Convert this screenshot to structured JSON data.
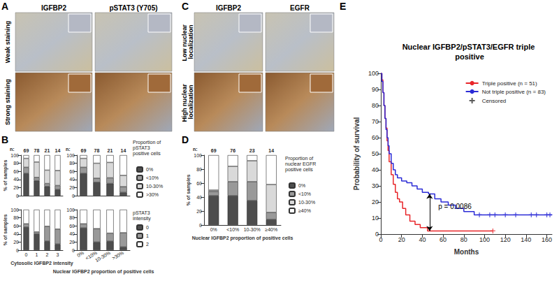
{
  "figure_panels": {
    "A": {
      "label": "A",
      "columns": [
        "IGFBP2",
        "pSTAT3 (Y705)"
      ],
      "rows": [
        "Weak staining",
        "Strong staining"
      ]
    },
    "C": {
      "label": "C",
      "columns": [
        "IGFBP2",
        "EGFR"
      ],
      "rows": [
        "Low nuclear localization",
        "High nuclear localization"
      ]
    }
  },
  "chart_data": [
    {
      "panel": "B",
      "type": "bar",
      "stacked": true,
      "grid": false,
      "tick_labels": "y",
      "categories": [
        "0",
        "1",
        "2",
        "3"
      ],
      "n_label": "n:",
      "n": [
        69,
        78,
        21,
        14
      ],
      "y_label": "% of samples",
      "ylim": [
        0,
        100
      ],
      "yticks": [
        0,
        20,
        40,
        60,
        80,
        100
      ],
      "series": [
        {
          "name": "0%",
          "color": "#4d4d4d",
          "values": [
            55,
            37,
            23,
            15
          ]
        },
        {
          "name": "<10%",
          "color": "#999999",
          "values": [
            15,
            8,
            7,
            10
          ]
        },
        {
          "name": "10-30%",
          "color": "#d9d9d9",
          "values": [
            22,
            38,
            33,
            37
          ]
        },
        {
          "name": ">30%",
          "color": "#ffffff",
          "values": [
            8,
            17,
            37,
            38
          ]
        }
      ]
    },
    {
      "type": "bar",
      "stacked": true,
      "grid": false,
      "tick_labels": "y",
      "legend": "right",
      "legend_title": "Proportion of pSTAT3 positive cells",
      "categories": [
        "0%",
        "<10%",
        "10-30%",
        ">30%"
      ],
      "n_label": "n:",
      "n": [
        69,
        78,
        21,
        14
      ],
      "ylim": [
        0,
        100
      ],
      "yticks": [
        0,
        20,
        40,
        60,
        80,
        100
      ],
      "series": [
        {
          "name": "0%",
          "color": "#4d4d4d",
          "values": [
            55,
            33,
            30,
            8
          ]
        },
        {
          "name": "<10%",
          "color": "#999999",
          "values": [
            15,
            10,
            14,
            14
          ]
        },
        {
          "name": "10-30%",
          "color": "#d9d9d9",
          "values": [
            22,
            37,
            38,
            28
          ]
        },
        {
          "name": ">30%",
          "color": "#ffffff",
          "values": [
            8,
            20,
            18,
            50
          ]
        }
      ]
    },
    {
      "type": "bar",
      "stacked": true,
      "grid": false,
      "categories": [
        "0",
        "1",
        "2",
        "3"
      ],
      "x_label": "Cytosolic IGFBP2 intensity",
      "y_label": "% of samples",
      "ylim": [
        0,
        100
      ],
      "yticks": [
        0,
        20,
        40,
        60,
        80,
        100
      ],
      "series": [
        {
          "name": "0",
          "color": "#4d4d4d",
          "values": [
            57,
            40,
            22,
            15
          ]
        },
        {
          "name": "1",
          "color": "#999999",
          "values": [
            8,
            5,
            37,
            37
          ]
        },
        {
          "name": "2",
          "color": "#ffffff",
          "values": [
            35,
            55,
            41,
            48
          ]
        }
      ]
    },
    {
      "type": "bar",
      "stacked": true,
      "grid": false,
      "legend": "right",
      "legend_title": "pSTAT3 intensity",
      "categories": [
        "0%",
        "<10%",
        "10-30%",
        ">30%"
      ],
      "x_label": "Nuclear IGFBP2 proportion of positive cells",
      "ylim": [
        0,
        100
      ],
      "yticks": [
        0,
        20,
        40,
        60,
        80,
        100
      ],
      "series": [
        {
          "name": "0",
          "color": "#4d4d4d",
          "values": [
            55,
            20,
            22,
            8
          ]
        },
        {
          "name": "1",
          "color": "#999999",
          "values": [
            10,
            33,
            20,
            35
          ]
        },
        {
          "name": "2",
          "color": "#ffffff",
          "values": [
            35,
            47,
            58,
            57
          ]
        }
      ]
    },
    {
      "panel": "D",
      "type": "bar",
      "stacked": true,
      "grid": false,
      "legend": "right",
      "legend_title": "Proportion of nuclear EGFR positive cells",
      "categories": [
        "0%",
        "<10%",
        "10-30%",
        "≥40%"
      ],
      "n_label": "n:",
      "n": [
        69,
        76,
        23,
        14
      ],
      "x_label": "Nuclear IGFBP2 proportion of positive cells",
      "y_label": "% of samples",
      "ylim": [
        0,
        100
      ],
      "yticks": [
        0,
        20,
        40,
        60,
        80,
        100
      ],
      "series": [
        {
          "name": "0%",
          "color": "#4d4d4d",
          "values": [
            42,
            42,
            35,
            8
          ]
        },
        {
          "name": "<10%",
          "color": "#999999",
          "values": [
            6,
            20,
            27,
            10
          ]
        },
        {
          "name": "10-30%",
          "color": "#d9d9d9",
          "values": [
            2,
            22,
            30,
            40
          ]
        },
        {
          "name": "≥40%",
          "color": "#ffffff",
          "values": [
            50,
            16,
            8,
            42
          ]
        }
      ]
    },
    {
      "panel": "E",
      "type": "line",
      "grid": false,
      "legend": "upper right",
      "title": "Nuclear IGFBP2/pSTAT3/EGFR triple positive",
      "x_label": "Months",
      "y_label": "Probability of survival",
      "xlim": [
        0,
        165
      ],
      "xticks": [
        0,
        20,
        40,
        60,
        80,
        100,
        120,
        140,
        160
      ],
      "ylim": [
        0,
        100
      ],
      "yticks": [
        0,
        10,
        20,
        30,
        40,
        50,
        60,
        70,
        80,
        90,
        100
      ],
      "censored_label": "Censored",
      "censored_marker": "plus",
      "series": [
        {
          "name": "Triple positive (n = 51)",
          "color": "#e8262a",
          "line_style": "step",
          "x": [
            0,
            1,
            2,
            3,
            4,
            5,
            6,
            7,
            8,
            10,
            12,
            14,
            16,
            18,
            21,
            24,
            28,
            33,
            38,
            45,
            108
          ],
          "values": [
            100,
            96,
            88,
            80,
            72,
            66,
            58,
            52,
            45,
            37,
            31,
            26,
            22,
            20,
            16,
            12,
            8,
            6,
            4,
            2,
            2
          ],
          "censored_x": [
            108
          ],
          "censored_values": [
            2
          ]
        },
        {
          "name": "Not triple positive (n = 83)",
          "color": "#2b2bd6",
          "line_style": "step",
          "x": [
            0,
            1,
            2,
            3,
            4,
            5,
            6,
            7,
            8,
            10,
            12,
            14,
            16,
            20,
            25,
            30,
            35,
            40,
            46,
            52,
            58,
            65,
            72,
            80,
            90,
            165
          ],
          "values": [
            100,
            95,
            88,
            80,
            72,
            65,
            60,
            55,
            50,
            44,
            40,
            37,
            35,
            33,
            32,
            30,
            28,
            26,
            25,
            22,
            20,
            18,
            16,
            14,
            12,
            12
          ],
          "censored_x": [
            95,
            105,
            110,
            120,
            130,
            145,
            150,
            160,
            163
          ],
          "censored_values": [
            12,
            12,
            12,
            12,
            12,
            12,
            12,
            12,
            12
          ]
        }
      ],
      "annotations": [
        {
          "text": "p = 0.0086",
          "x": 52,
          "y": 17
        }
      ],
      "arrows": [
        {
          "x": 47,
          "y": [
            2,
            25
          ]
        }
      ]
    }
  ]
}
